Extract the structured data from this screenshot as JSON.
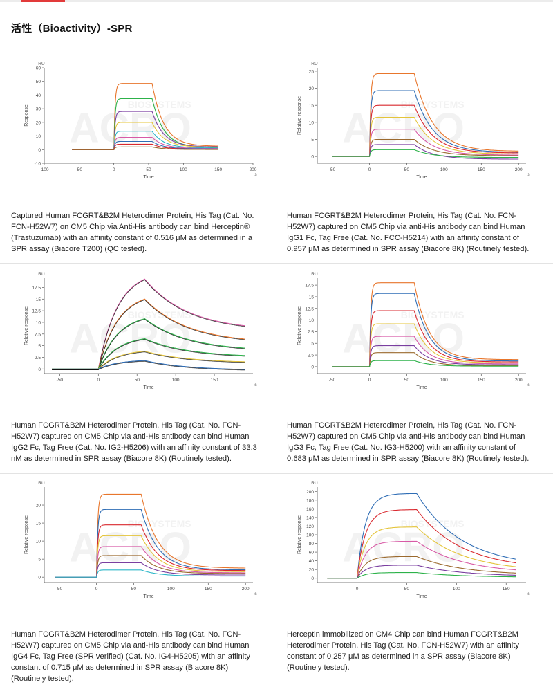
{
  "page": {
    "title": "活性（Bioactivity）-SPR"
  },
  "watermark": {
    "big": "ACRO",
    "small": "BIOSYSTEMS"
  },
  "colors": {
    "accent": "#e23a3a",
    "palette": [
      "#e8762c",
      "#2f6db5",
      "#2db24a",
      "#d9292f",
      "#7a3fa0",
      "#e4c43a",
      "#2cb6c8",
      "#d85aa6",
      "#9b6a2e",
      "#111111"
    ]
  },
  "panels": [
    {
      "caption": "Captured Human FCGRT&B2M Heterodimer Protein, His Tag (Cat. No. FCN-H52W7) on CM5 Chip via Anti-His antibody can bind Herceptin® (Trastuzumab) with an affinity constant of 0.516 μM as determined in a SPR assay (Biacore T200) (QC tested).",
      "chart_data": {
        "type": "line",
        "title": "",
        "xlabel": "Time",
        "ylabel": "Response",
        "unit_y": "RU",
        "unit_x": "s",
        "xlim": [
          -100,
          200
        ],
        "ylim": [
          -10,
          60
        ],
        "xticks": [
          -100,
          -50,
          0,
          50,
          100,
          150,
          200
        ],
        "yticks": [
          -10,
          0,
          10,
          20,
          30,
          40,
          50,
          60
        ],
        "association": [
          0,
          55
        ],
        "dissociation_end": 150,
        "baseline_start": -60,
        "series": [
          {
            "name": "c1",
            "color": "#e8762c",
            "plateau": 48.5,
            "end": 2.5,
            "k": 0.06
          },
          {
            "name": "c2",
            "color": "#2db24a",
            "plateau": 37.5,
            "end": 1.5,
            "k": 0.06
          },
          {
            "name": "c3",
            "color": "#7a3fa0",
            "plateau": 28,
            "end": 2,
            "k": 0.06
          },
          {
            "name": "c4",
            "color": "#e4c43a",
            "plateau": 20,
            "end": 1.8,
            "k": 0.06
          },
          {
            "name": "c5",
            "color": "#2cb6c8",
            "plateau": 13.5,
            "end": 1.2,
            "k": 0.06
          },
          {
            "name": "c6",
            "color": "#d85aa6",
            "plateau": 9,
            "end": 0.8,
            "k": 0.06
          },
          {
            "name": "c7",
            "color": "#2f6db5",
            "plateau": 6,
            "end": 0.5,
            "k": 0.06
          },
          {
            "name": "c8",
            "color": "#d9292f",
            "plateau": 4,
            "end": 0.3,
            "k": 0.06
          },
          {
            "name": "c9",
            "color": "#9b6a2e",
            "plateau": 2,
            "end": 0.1,
            "k": 0.06
          }
        ]
      }
    },
    {
      "caption": "Human FCGRT&B2M Heterodimer Protein, His Tag (Cat. No. FCN-H52W7) captured on CM5 Chip via anti-His antibody can bind Human IgG1 Fc, Tag Free (Cat. No. FCC-H5214) with an affinity constant of 0.957 μM as determined in SPR assay (Biacore 8K) (Routinely tested).",
      "chart_data": {
        "type": "line",
        "title": "",
        "xlabel": "Time",
        "ylabel": "Relative response",
        "unit_y": "RU",
        "unit_x": "s",
        "xlim": [
          -70,
          210
        ],
        "ylim": [
          -2,
          26
        ],
        "xticks": [
          -50,
          0,
          50,
          100,
          150,
          200
        ],
        "yticks": [
          0,
          5,
          10,
          15,
          20,
          25
        ],
        "association": [
          0,
          60
        ],
        "dissociation_end": 200,
        "baseline_start": -50,
        "series": [
          {
            "name": "c1",
            "color": "#e8762c",
            "plateau": 24.3,
            "end": 1.5,
            "k": 0.04
          },
          {
            "name": "c2",
            "color": "#2f6db5",
            "plateau": 19.3,
            "end": 1.2,
            "k": 0.04
          },
          {
            "name": "c3",
            "color": "#d9292f",
            "plateau": 15,
            "end": 1,
            "k": 0.04
          },
          {
            "name": "c4",
            "color": "#e4c43a",
            "plateau": 11.5,
            "end": 0.7,
            "k": 0.04
          },
          {
            "name": "c5",
            "color": "#d85aa6",
            "plateau": 8,
            "end": 0.4,
            "k": 0.04
          },
          {
            "name": "c6",
            "color": "#9b6a2e",
            "plateau": 5,
            "end": 0.2,
            "k": 0.04
          },
          {
            "name": "c7",
            "color": "#7a3fa0",
            "plateau": 3.5,
            "end": -0.8,
            "k": 0.04
          },
          {
            "name": "c8",
            "color": "#2db24a",
            "plateau": 2,
            "end": -0.3,
            "k": 0.04
          }
        ]
      }
    },
    {
      "caption": "Human FCGRT&B2M Heterodimer Protein, His Tag (Cat. No. FCN-H52W7) captured on CM5 Chip via anti-His antibody can bind Human IgG2 Fc, Tag Free (Cat. No. IG2-H5206) with an affinity constant of 33.3 nM as determined in SPR assay (Biacore 8K) (Routinely tested).",
      "chart_data": {
        "type": "line",
        "title": "",
        "xlabel": "Time",
        "ylabel": "Relative response",
        "unit_y": "RU",
        "unit_x": "s",
        "xlim": [
          -70,
          200
        ],
        "ylim": [
          -1,
          19.5
        ],
        "xticks": [
          -50,
          0,
          50,
          100,
          150
        ],
        "yticks": [
          0,
          2.5,
          5,
          7.5,
          10,
          12.5,
          15,
          17.5
        ],
        "association": [
          0,
          60
        ],
        "dissociation_end": 190,
        "baseline_start": -60,
        "fit": true,
        "series": [
          {
            "name": "c1",
            "color": "#d85aa6",
            "plateau": 19.3,
            "end": 8.2,
            "k": 0.018,
            "ka": 0.04
          },
          {
            "name": "c2",
            "color": "#e8762c",
            "plateau": 15,
            "end": 5.5,
            "k": 0.018,
            "ka": 0.04
          },
          {
            "name": "c3",
            "color": "#2db24a",
            "plateau": 10.8,
            "end": 3.8,
            "k": 0.018,
            "ka": 0.04
          },
          {
            "name": "c4",
            "color": "#2db24a",
            "plateau": 6.5,
            "end": 2.5,
            "k": 0.018,
            "ka": 0.04
          },
          {
            "name": "c5",
            "color": "#e4c43a",
            "plateau": 3.8,
            "end": 1.3,
            "k": 0.018,
            "ka": 0.04
          },
          {
            "name": "c6",
            "color": "#2f6db5",
            "plateau": 1.8,
            "end": -0.3,
            "k": 0.018,
            "ka": 0.04
          }
        ]
      }
    },
    {
      "caption": "Human FCGRT&B2M Heterodimer Protein, His Tag (Cat. No. FCN-H52W7) captured on CM5 Chip via anti-His antibody can bind Human IgG3 Fc, Tag Free (Cat. No. IG3-H5200) with an affinity constant of 0.683 μM as determined in SPR assay (Biacore 8K) (Routinely tested).",
      "chart_data": {
        "type": "line",
        "title": "",
        "xlabel": "Time",
        "ylabel": "Relative response",
        "unit_y": "RU",
        "unit_x": "s",
        "xlim": [
          -70,
          210
        ],
        "ylim": [
          -1.5,
          19
        ],
        "xticks": [
          -50,
          0,
          50,
          100,
          150,
          200
        ],
        "yticks": [
          0,
          2.5,
          5,
          7.5,
          10,
          12.5,
          15,
          17.5
        ],
        "association": [
          0,
          60
        ],
        "dissociation_end": 200,
        "baseline_start": -50,
        "series": [
          {
            "name": "c1",
            "color": "#e8762c",
            "plateau": 18,
            "end": 1.5,
            "k": 0.05
          },
          {
            "name": "c2",
            "color": "#2f6db5",
            "plateau": 15.7,
            "end": 1.2,
            "k": 0.05
          },
          {
            "name": "c3",
            "color": "#d9292f",
            "plateau": 12,
            "end": 1,
            "k": 0.05
          },
          {
            "name": "c4",
            "color": "#e4c43a",
            "plateau": 9.2,
            "end": 0.8,
            "k": 0.05
          },
          {
            "name": "c5",
            "color": "#d85aa6",
            "plateau": 6.5,
            "end": 0.6,
            "k": 0.05
          },
          {
            "name": "c6",
            "color": "#7a3fa0",
            "plateau": 4.5,
            "end": 0.4,
            "k": 0.05
          },
          {
            "name": "c7",
            "color": "#9b6a2e",
            "plateau": 3,
            "end": 0.2,
            "k": 0.05
          },
          {
            "name": "c8",
            "color": "#2db24a",
            "plateau": 1.3,
            "end": 0.1,
            "k": 0.05
          }
        ]
      }
    },
    {
      "caption": "Human FCGRT&B2M Heterodimer Protein, His Tag (Cat. No. FCN-H52W7) captured on CM5 Chip via anti-His antibody can bind Human IgG4 Fc, Tag Free (SPR verified) (Cat. No. IG4-H5205) with an affinity constant of 0.715 μM as determined in SPR assay (Biacore 8K) (Routinely tested).",
      "chart_data": {
        "type": "line",
        "title": "",
        "xlabel": "Time",
        "ylabel": "Relative response",
        "unit_y": "RU",
        "unit_x": "s",
        "xlim": [
          -70,
          210
        ],
        "ylim": [
          -1.5,
          25
        ],
        "xticks": [
          -50,
          0,
          50,
          100,
          150,
          200
        ],
        "yticks": [
          0,
          5,
          10,
          15,
          20
        ],
        "association": [
          0,
          60
        ],
        "dissociation_end": 200,
        "baseline_start": -55,
        "series": [
          {
            "name": "c1",
            "color": "#e8762c",
            "plateau": 23,
            "end": 2.5,
            "k": 0.045
          },
          {
            "name": "c2",
            "color": "#2f6db5",
            "plateau": 18.8,
            "end": 2,
            "k": 0.045
          },
          {
            "name": "c3",
            "color": "#d9292f",
            "plateau": 14.5,
            "end": 1.8,
            "k": 0.045
          },
          {
            "name": "c4",
            "color": "#e4c43a",
            "plateau": 11.5,
            "end": 1.5,
            "k": 0.045
          },
          {
            "name": "c5",
            "color": "#d85aa6",
            "plateau": 8.5,
            "end": 1.2,
            "k": 0.045
          },
          {
            "name": "c6",
            "color": "#9b6a2e",
            "plateau": 6,
            "end": 1,
            "k": 0.045
          },
          {
            "name": "c7",
            "color": "#7a3fa0",
            "plateau": 4,
            "end": 0.6,
            "k": 0.045
          },
          {
            "name": "c8",
            "color": "#2cb6c8",
            "plateau": 2,
            "end": 0.3,
            "k": 0.045
          }
        ]
      }
    },
    {
      "caption": "Herceptin immobilized on CM4 Chip can bind Human FCGRT&B2M Heterodimer Protein, His Tag (Cat. No. FCN-H52W7) with an affinity constant of 0.257 μM as determined in a SPR assay (Biacore 8K) (Routinely tested).",
      "chart_data": {
        "type": "line",
        "title": "",
        "xlabel": "Time",
        "ylabel": "Relative response",
        "unit_y": "RU",
        "unit_x": "s",
        "xlim": [
          -40,
          170
        ],
        "ylim": [
          -10,
          210
        ],
        "xticks": [
          0,
          50,
          100,
          150
        ],
        "yticks": [
          0,
          20,
          40,
          60,
          80,
          100,
          120,
          140,
          160,
          180,
          200
        ],
        "association": [
          0,
          60
        ],
        "dissociation_end": 160,
        "baseline_start": -30,
        "series": [
          {
            "name": "c1",
            "color": "#2f6db5",
            "plateau": 195,
            "end": 25,
            "k": 0.022,
            "ka": 0.12
          },
          {
            "name": "c2",
            "color": "#d9292f",
            "plateau": 158,
            "end": 20,
            "k": 0.022,
            "ka": 0.12
          },
          {
            "name": "c3",
            "color": "#e4c43a",
            "plateau": 118,
            "end": 15,
            "k": 0.022,
            "ka": 0.12
          },
          {
            "name": "c4",
            "color": "#d85aa6",
            "plateau": 85,
            "end": 11,
            "k": 0.022,
            "ka": 0.12
          },
          {
            "name": "c5",
            "color": "#9b6a2e",
            "plateau": 50,
            "end": 7,
            "k": 0.022,
            "ka": 0.12
          },
          {
            "name": "c6",
            "color": "#7a3fa0",
            "plateau": 30,
            "end": 4,
            "k": 0.022,
            "ka": 0.12
          },
          {
            "name": "c7",
            "color": "#2db24a",
            "plateau": 13,
            "end": 2,
            "k": 0.022,
            "ka": 0.12
          }
        ]
      }
    }
  ]
}
